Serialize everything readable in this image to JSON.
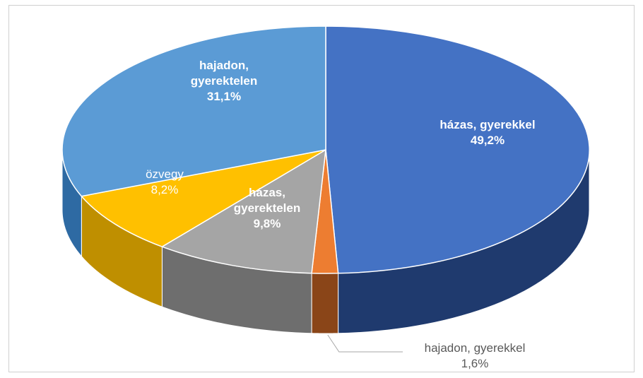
{
  "chart_data": {
    "type": "pie",
    "title": "",
    "slices": [
      {
        "label_lines": [
          "házas, gyerekkel",
          "49,2%"
        ],
        "category": "házas, gyerekkel",
        "value": 49.2,
        "color": "#4472c4",
        "side_color": "#1f3a6e",
        "label_style": "bold"
      },
      {
        "label_lines": [
          "hajadon, gyerekkel",
          "1,6%"
        ],
        "category": "hajadon, gyerekkel",
        "value": 1.6,
        "color": "#ed7d31",
        "side_color": "#8a4518",
        "label_style": "outside"
      },
      {
        "label_lines": [
          "házas,",
          "gyerektelen",
          "9,8%"
        ],
        "category": "házas, gyerektelen",
        "value": 9.8,
        "color": "#a5a5a5",
        "side_color": "#6e6e6e",
        "label_style": "bold"
      },
      {
        "label_lines": [
          "özvegy",
          "8,2%"
        ],
        "category": "özvegy",
        "value": 8.2,
        "color": "#ffc000",
        "side_color": "#bf8f00",
        "label_style": "normal"
      },
      {
        "label_lines": [
          "hajadon,",
          "gyerektelen",
          "31,1%"
        ],
        "category": "hajadon, gyerektelen",
        "value": 31.1,
        "color": "#5b9bd5",
        "side_color": "#2e6aa3",
        "label_style": "bold"
      }
    ],
    "start_angle_deg": 0,
    "direction": "clockwise",
    "style": "3d-tilted"
  }
}
